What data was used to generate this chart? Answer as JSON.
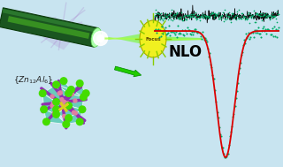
{
  "bg_color": "#c8e4f0",
  "teal_face": "#50c8b0",
  "green_node": "#44dd00",
  "purple_rod": "#9030b0",
  "pink_dot": "#e080a0",
  "yellow_lig": "#d8d020",
  "nlo_label": "NLO",
  "formula": "{Zn$_{12}$Al$_6$}",
  "focus_label": "Focus",
  "red_curve": "#dd0000",
  "teal_dot": "#00aa66",
  "black_noise": "#111111",
  "arrow_green": "#22cc00",
  "laser_dark": "#1a5520",
  "laser_light": "#33aa33",
  "laser_bright": "#88ff44",
  "beam_green": "#66ff00",
  "focus_yellow": "#f0f020"
}
